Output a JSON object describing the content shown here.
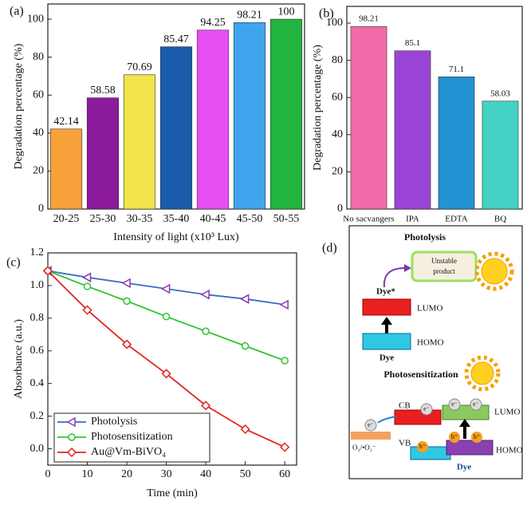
{
  "chart_data": [
    {
      "type": "bar",
      "panel_label": "(a)",
      "ylabel": "Degradation percentage (%)",
      "xlabel": "Intensity of light (x10³ Lux)",
      "categories": [
        "20-25",
        "25-30",
        "30-35",
        "35-40",
        "40-45",
        "45-50",
        "50-55"
      ],
      "values": [
        42.14,
        58.58,
        70.69,
        85.47,
        94.25,
        98.21,
        100
      ],
      "colors": [
        "#f7a13a",
        "#8c1a9c",
        "#f2e44a",
        "#1a5cac",
        "#e64ef2",
        "#3fa6ee",
        "#22b440"
      ],
      "ylim": [
        0,
        108
      ],
      "yticks": [
        0,
        20,
        40,
        60,
        80,
        100
      ]
    },
    {
      "type": "bar",
      "panel_label": "(b)",
      "ylabel": "Degradation percentage (%)",
      "categories": [
        "No sacvangers",
        "IPA",
        "EDTA",
        "BQ"
      ],
      "values": [
        98.21,
        85.1,
        71.1,
        58.03
      ],
      "colors": [
        "#f26aa8",
        "#9a44d6",
        "#2292d2",
        "#44d2c4"
      ],
      "ylim": [
        0,
        109
      ],
      "yticks": [
        0,
        20,
        40,
        60,
        80,
        100
      ]
    },
    {
      "type": "line",
      "panel_label": "(c)",
      "ylabel": "Absorbance (a.u.)",
      "xlabel": "Time (min)",
      "x": [
        0,
        10,
        20,
        30,
        40,
        50,
        60
      ],
      "series": [
        {
          "name": "Photolysis",
          "color": "#3a6cc4",
          "marker_color": "#8a3ab0",
          "marker": "triangle-left",
          "values": [
            1.09,
            1.05,
            1.015,
            0.98,
            0.945,
            0.918,
            0.883
          ]
        },
        {
          "name": "Photosensitization",
          "color": "#2ec42e",
          "marker_color": "#2ec42e",
          "marker": "circle",
          "values": [
            1.09,
            0.995,
            0.905,
            0.81,
            0.72,
            0.63,
            0.54
          ]
        },
        {
          "name": "Au@Vm-BiVO₄",
          "color": "#e42222",
          "marker_color": "#e42222",
          "marker": "diamond",
          "values": [
            1.09,
            0.85,
            0.64,
            0.46,
            0.265,
            0.12,
            0.01
          ]
        }
      ],
      "xlim": [
        0,
        63
      ],
      "xticks": [
        0,
        10,
        20,
        30,
        40,
        50,
        60
      ],
      "ylim": [
        -0.1,
        1.2
      ],
      "yticks": [
        {
          "value": 0,
          "label": "0.0"
        },
        0.2,
        0.4,
        0.6,
        0.8,
        {
          "value": 1,
          "label": "1.0"
        },
        1.2
      ],
      "legend": "lower left"
    }
  ],
  "diagram": {
    "panel_label": "(d)",
    "photolysis": {
      "title": "Photolysis",
      "product": [
        "Unstable",
        "product"
      ],
      "excited": "Dye*",
      "lumo": "LUMO",
      "homo": "HOMO",
      "dye": "Dye"
    },
    "photosensitization": {
      "title": "Photosensitization",
      "cb": "CB",
      "vb": "VB",
      "electrons": [
        "e⁻",
        "e⁻",
        "e⁻",
        "e⁻"
      ],
      "holes": [
        "h⁺",
        "h⁺",
        "h⁺"
      ],
      "oxygen": "O₂/•O₂⁻",
      "lumo": "LUMO",
      "homo": "HOMO",
      "dye": "Dye"
    }
  }
}
